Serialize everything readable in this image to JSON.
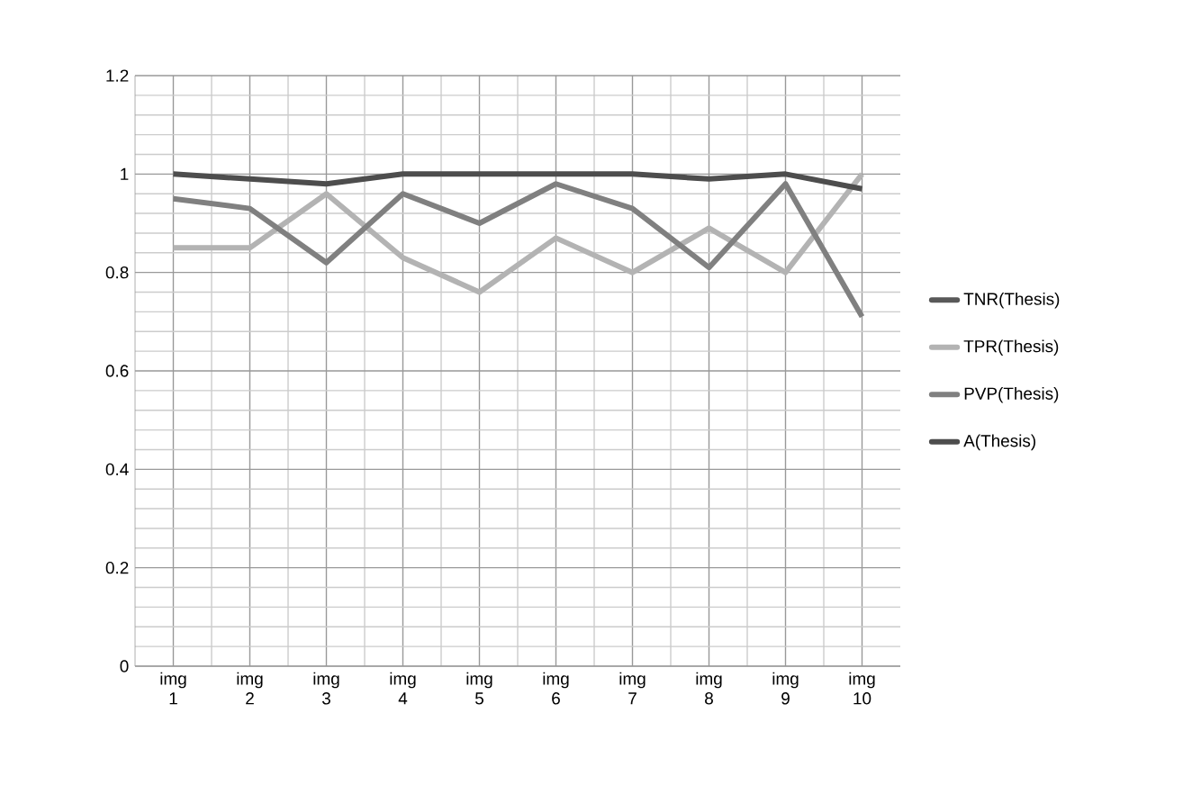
{
  "chart_data": {
    "type": "line",
    "categories": [
      "img 1",
      "img 2",
      "img 3",
      "img 4",
      "img 5",
      "img 6",
      "img 7",
      "img 8",
      "img 9",
      "img 10"
    ],
    "series": [
      {
        "name": "TNR(Thesis)",
        "color": "#595959",
        "values": [
          null,
          null,
          null,
          null,
          null,
          null,
          null,
          null,
          null,
          null
        ]
      },
      {
        "name": "TPR(Thesis)",
        "color": "#b3b3b3",
        "values": [
          0.85,
          0.85,
          0.96,
          0.83,
          0.76,
          0.87,
          0.8,
          0.89,
          0.8,
          1.0
        ]
      },
      {
        "name": "PVP(Thesis)",
        "color": "#808080",
        "values": [
          0.95,
          0.93,
          0.82,
          0.96,
          0.9,
          0.98,
          0.93,
          0.81,
          0.98,
          0.71
        ]
      },
      {
        "name": "A(Thesis)",
        "color": "#4d4d4d",
        "values": [
          1.0,
          0.99,
          0.98,
          1.0,
          1.0,
          1.0,
          1.0,
          0.99,
          1.0,
          0.97
        ]
      }
    ],
    "ylim": [
      0,
      1.2
    ],
    "yticks": [
      0,
      0.2,
      0.4,
      0.6,
      0.8,
      1,
      1.2
    ],
    "grid": true,
    "legend": "right",
    "marker": "none",
    "line_style": "solid"
  }
}
